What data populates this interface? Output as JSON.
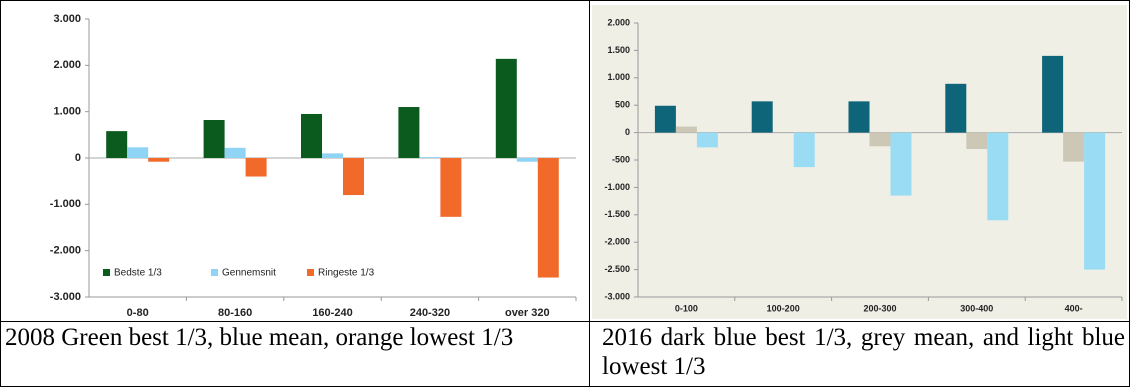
{
  "chart_data": [
    {
      "type": "bar",
      "caption": "2008 Green best 1/3, blue mean, orange lowest 1/3",
      "categories": [
        "0-80",
        "80-160",
        "160-240",
        "240-320",
        "over 320"
      ],
      "series": [
        {
          "name": "Bedste 1/3",
          "color": "#0b5a1e",
          "values": [
            580,
            820,
            950,
            1100,
            2140
          ]
        },
        {
          "name": "Gennemsnit",
          "color": "#8fd3f5",
          "values": [
            230,
            220,
            100,
            20,
            -80
          ]
        },
        {
          "name": "Ringeste 1/3",
          "color": "#f26a2a",
          "values": [
            -80,
            -400,
            -800,
            -1270,
            -2580
          ]
        }
      ],
      "ylim": [
        -3000,
        3000
      ],
      "yticks": [
        {
          "value": -3000,
          "label": "-3.000"
        },
        {
          "value": -2000,
          "label": "-2.000"
        },
        {
          "value": -1000,
          "label": "-1.000"
        },
        0,
        {
          "value": 1000,
          "label": "1.000"
        },
        {
          "value": 2000,
          "label": "2.000"
        },
        {
          "value": 3000,
          "label": "3.000"
        }
      ],
      "legend": "lower left"
    },
    {
      "type": "bar",
      "caption": "2016 dark blue best 1/3, grey mean, and light blue lowest 1/3",
      "categories": [
        "0-100",
        "100-200",
        "200-300",
        "300-400",
        "400-"
      ],
      "series": [
        {
          "color": "#0e6478",
          "values": [
            490,
            570,
            570,
            890,
            1400
          ]
        },
        {
          "color": "#cdc8b6",
          "values": [
            110,
            0,
            -250,
            -300,
            -530
          ]
        },
        {
          "color": "#9bdcf5",
          "values": [
            -270,
            -630,
            -1150,
            -1600,
            -2500
          ]
        }
      ],
      "ylim": [
        -3000,
        2000
      ],
      "yticks": [
        {
          "value": -3000,
          "label": "-3.000"
        },
        {
          "value": -2500,
          "label": "-2.500"
        },
        {
          "value": -2000,
          "label": "-2.000"
        },
        {
          "value": -1500,
          "label": "-1.500"
        },
        {
          "value": -1000,
          "label": "-1.000"
        },
        -500,
        0,
        500,
        {
          "value": 1000,
          "label": "1.000"
        },
        {
          "value": 1500,
          "label": "1.500"
        },
        {
          "value": 2000,
          "label": "2.000"
        }
      ]
    }
  ]
}
